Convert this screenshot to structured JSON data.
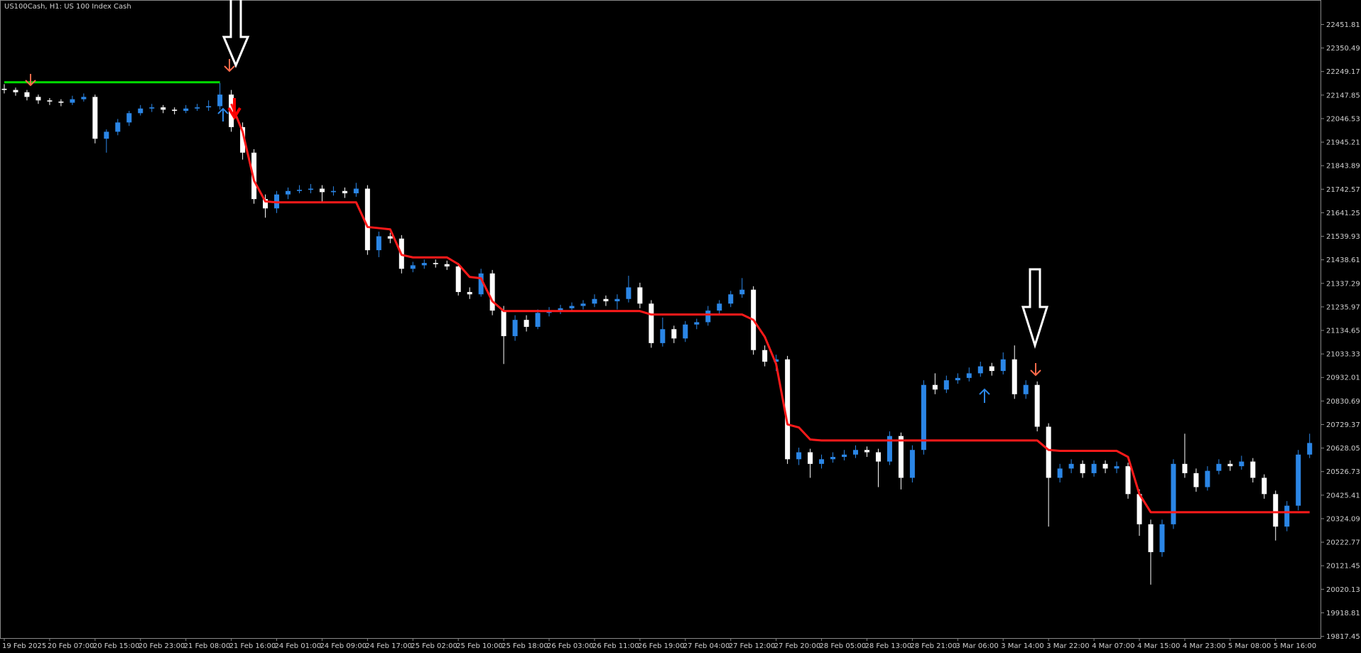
{
  "chart_data": {
    "type": "candlestick",
    "title": "US100Cash, H1:  US 100 Index Cash",
    "ylim": [
      19810,
      22545
    ],
    "yticks": [
      22451.81,
      22350.49,
      22249.17,
      22147.85,
      22046.53,
      21945.21,
      21843.89,
      21742.57,
      21641.25,
      21539.93,
      21438.61,
      21337.29,
      21235.97,
      21134.65,
      21033.33,
      20932.01,
      20830.69,
      20729.37,
      20628.05,
      20526.73,
      20425.41,
      20324.09,
      20222.77,
      20121.45,
      20020.13,
      19918.81,
      19817.45
    ],
    "x_labels": [
      "19 Feb 2025",
      "20 Feb 07:00",
      "20 Feb 15:00",
      "20 Feb 23:00",
      "21 Feb 08:00",
      "21 Feb 16:00",
      "24 Feb 01:00",
      "24 Feb 09:00",
      "24 Feb 17:00",
      "25 Feb 02:00",
      "25 Feb 10:00",
      "25 Feb 18:00",
      "26 Feb 03:00",
      "26 Feb 11:00",
      "26 Feb 19:00",
      "27 Feb 04:00",
      "27 Feb 12:00",
      "27 Feb 20:00",
      "28 Feb 05:00",
      "28 Feb 13:00",
      "28 Feb 21:00",
      "3 Mar 06:00",
      "3 Mar 14:00",
      "3 Mar 22:00",
      "4 Mar 07:00",
      "4 Mar 15:00",
      "4 Mar 23:00",
      "5 Mar 08:00",
      "5 Mar 16:00"
    ],
    "up_color": "#2b86e6",
    "down_color": "#ffffff",
    "candles": [
      [
        22175,
        22195,
        22155,
        22170
      ],
      [
        22170,
        22180,
        22145,
        22160
      ],
      [
        22160,
        22170,
        22125,
        22140
      ],
      [
        22140,
        22150,
        22110,
        22125
      ],
      [
        22125,
        22135,
        22105,
        22120
      ],
      [
        22120,
        22130,
        22100,
        22115
      ],
      [
        22115,
        22145,
        22105,
        22130
      ],
      [
        22130,
        22155,
        22120,
        22140
      ],
      [
        22140,
        22150,
        21940,
        21960
      ],
      [
        21960,
        22000,
        21900,
        21990
      ],
      [
        21990,
        22045,
        21975,
        22030
      ],
      [
        22030,
        22080,
        22015,
        22070
      ],
      [
        22070,
        22105,
        22060,
        22090
      ],
      [
        22090,
        22110,
        22075,
        22095
      ],
      [
        22095,
        22105,
        22070,
        22085
      ],
      [
        22085,
        22095,
        22065,
        22080
      ],
      [
        22080,
        22105,
        22070,
        22090
      ],
      [
        22090,
        22110,
        22080,
        22095
      ],
      [
        22095,
        22125,
        22080,
        22100
      ],
      [
        22100,
        22200,
        22085,
        22150
      ],
      [
        22150,
        22170,
        21990,
        22010
      ],
      [
        22010,
        22030,
        21870,
        21900
      ],
      [
        21900,
        21915,
        21680,
        21700
      ],
      [
        21700,
        21720,
        21620,
        21660
      ],
      [
        21660,
        21735,
        21640,
        21720
      ],
      [
        21720,
        21750,
        21700,
        21735
      ],
      [
        21735,
        21760,
        21725,
        21740
      ],
      [
        21740,
        21765,
        21725,
        21745
      ],
      [
        21745,
        21760,
        21690,
        21730
      ],
      [
        21730,
        21755,
        21715,
        21735
      ],
      [
        21735,
        21750,
        21705,
        21725
      ],
      [
        21725,
        21770,
        21710,
        21745
      ],
      [
        21745,
        21760,
        21460,
        21480
      ],
      [
        21480,
        21560,
        21450,
        21540
      ],
      [
        21540,
        21555,
        21510,
        21530
      ],
      [
        21530,
        21545,
        21380,
        21400
      ],
      [
        21400,
        21430,
        21385,
        21415
      ],
      [
        21415,
        21440,
        21400,
        21425
      ],
      [
        21425,
        21440,
        21405,
        21420
      ],
      [
        21420,
        21435,
        21395,
        21410
      ],
      [
        21410,
        21425,
        21285,
        21300
      ],
      [
        21300,
        21320,
        21270,
        21290
      ],
      [
        21290,
        21400,
        21280,
        21380
      ],
      [
        21380,
        21395,
        21200,
        21220
      ],
      [
        21220,
        21240,
        20990,
        21110
      ],
      [
        21110,
        21200,
        21090,
        21180
      ],
      [
        21180,
        21200,
        21130,
        21150
      ],
      [
        21150,
        21225,
        21140,
        21210
      ],
      [
        21210,
        21235,
        21195,
        21220
      ],
      [
        21220,
        21245,
        21205,
        21230
      ],
      [
        21230,
        21255,
        21215,
        21240
      ],
      [
        21240,
        21265,
        21225,
        21250
      ],
      [
        21250,
        21290,
        21235,
        21270
      ],
      [
        21270,
        21285,
        21240,
        21260
      ],
      [
        21260,
        21290,
        21225,
        21270
      ],
      [
        21270,
        21370,
        21255,
        21320
      ],
      [
        21320,
        21340,
        21230,
        21250
      ],
      [
        21250,
        21265,
        21060,
        21080
      ],
      [
        21080,
        21190,
        21065,
        21140
      ],
      [
        21140,
        21155,
        21080,
        21100
      ],
      [
        21100,
        21175,
        21085,
        21160
      ],
      [
        21160,
        21185,
        21140,
        21170
      ],
      [
        21170,
        21240,
        21155,
        21220
      ],
      [
        21220,
        21265,
        21205,
        21250
      ],
      [
        21250,
        21305,
        21235,
        21290
      ],
      [
        21290,
        21360,
        21275,
        21310
      ],
      [
        21310,
        21325,
        21030,
        21050
      ],
      [
        21050,
        21070,
        20980,
        21000
      ],
      [
        21000,
        21030,
        20960,
        21010
      ],
      [
        21010,
        21025,
        20560,
        20580
      ],
      [
        20580,
        20630,
        20555,
        20610
      ],
      [
        20610,
        20625,
        20500,
        20560
      ],
      [
        20560,
        20600,
        20540,
        20580
      ],
      [
        20580,
        20610,
        20565,
        20590
      ],
      [
        20590,
        20620,
        20575,
        20600
      ],
      [
        20600,
        20640,
        20585,
        20620
      ],
      [
        20620,
        20635,
        20590,
        20610
      ],
      [
        20610,
        20625,
        20460,
        20570
      ],
      [
        20570,
        20700,
        20555,
        20680
      ],
      [
        20680,
        20695,
        20450,
        20500
      ],
      [
        20500,
        20640,
        20480,
        20620
      ],
      [
        20620,
        20920,
        20600,
        20900
      ],
      [
        20900,
        20950,
        20860,
        20880
      ],
      [
        20880,
        20940,
        20865,
        20920
      ],
      [
        20920,
        20950,
        20905,
        20930
      ],
      [
        20930,
        20975,
        20915,
        20950
      ],
      [
        20950,
        21000,
        20935,
        20980
      ],
      [
        20980,
        20995,
        20940,
        20960
      ],
      [
        20960,
        21040,
        20945,
        21010
      ],
      [
        21010,
        21070,
        20840,
        20860
      ],
      [
        20860,
        20920,
        20840,
        20900
      ],
      [
        20900,
        20915,
        20700,
        20720
      ],
      [
        20720,
        20735,
        20290,
        20500
      ],
      [
        20500,
        20560,
        20480,
        20540
      ],
      [
        20540,
        20580,
        20520,
        20560
      ],
      [
        20560,
        20575,
        20500,
        20520
      ],
      [
        20520,
        20575,
        20505,
        20560
      ],
      [
        20560,
        20575,
        20520,
        20540
      ],
      [
        20540,
        20570,
        20520,
        20550
      ],
      [
        20550,
        20565,
        20410,
        20430
      ],
      [
        20430,
        20450,
        20250,
        20300
      ],
      [
        20300,
        20320,
        20040,
        20180
      ],
      [
        20180,
        20320,
        20160,
        20300
      ],
      [
        20300,
        20580,
        20280,
        20560
      ],
      [
        20560,
        20690,
        20500,
        20520
      ],
      [
        20520,
        20540,
        20440,
        20460
      ],
      [
        20460,
        20550,
        20445,
        20530
      ],
      [
        20530,
        20580,
        20515,
        20560
      ],
      [
        20560,
        20575,
        20530,
        20550
      ],
      [
        20550,
        20595,
        20535,
        20570
      ],
      [
        20570,
        20585,
        20480,
        20500
      ],
      [
        20500,
        20515,
        20410,
        20430
      ],
      [
        20430,
        20445,
        20230,
        20290
      ],
      [
        20290,
        20400,
        20270,
        20380
      ],
      [
        20380,
        20620,
        20360,
        20600
      ],
      [
        20600,
        20690,
        20585,
        20650
      ]
    ],
    "lines": [
      {
        "color": "#00dd00",
        "values": [
          22203,
          22203,
          22203,
          22203,
          22203,
          22203,
          22203,
          22203,
          22203,
          22203,
          22203,
          22203,
          22203,
          22203,
          22203,
          22203,
          22203,
          22203,
          22203,
          22203,
          null,
          null,
          null,
          null,
          null,
          null,
          null,
          null,
          null,
          null,
          null,
          null,
          null,
          null,
          null,
          null,
          null,
          null,
          null,
          null,
          null,
          null,
          null,
          null,
          null,
          null,
          null,
          null,
          null,
          null,
          null,
          null,
          null,
          null,
          null,
          null,
          null,
          null,
          null,
          null,
          null,
          null,
          null,
          null,
          null,
          null,
          null,
          null,
          null,
          null,
          null,
          null,
          null,
          null,
          null,
          null,
          null,
          null,
          null,
          null,
          null,
          null,
          null,
          null,
          null,
          null,
          null,
          null,
          null,
          null,
          null,
          null,
          null,
          null,
          null,
          null,
          null,
          null,
          null,
          null,
          null,
          null,
          null,
          null,
          null,
          null,
          null,
          null,
          null,
          null,
          null,
          null,
          null,
          null,
          null,
          null
        ]
      },
      {
        "color": "#ff1a1a",
        "values": [
          null,
          null,
          null,
          null,
          null,
          null,
          null,
          null,
          null,
          null,
          null,
          null,
          null,
          null,
          null,
          null,
          null,
          null,
          null,
          null,
          22110,
          21990,
          21780,
          21690,
          21686,
          21686,
          21686,
          21686,
          21686,
          21686,
          21686,
          21686,
          21580,
          21575,
          21570,
          21460,
          21449,
          21449,
          21449,
          21449,
          21420,
          21365,
          21359,
          21260,
          21218,
          21218,
          21218,
          21218,
          21218,
          21218,
          21218,
          21218,
          21218,
          21218,
          21218,
          21218,
          21218,
          21203,
          21203,
          21203,
          21203,
          21203,
          21203,
          21203,
          21203,
          21203,
          21180,
          21107,
          20990,
          20730,
          20717,
          20665,
          20661,
          20661,
          20661,
          20661,
          20661,
          20661,
          20661,
          20661,
          20661,
          20661,
          20661,
          20661,
          20661,
          20661,
          20661,
          20661,
          20661,
          20661,
          20661,
          20661,
          20620,
          20616,
          20616,
          20616,
          20616,
          20616,
          20616,
          20590,
          20430,
          20352,
          20352,
          20352,
          20352,
          20352,
          20352,
          20352,
          20352,
          20352,
          20352,
          20352,
          20352,
          20352,
          20352,
          20352
        ]
      }
    ]
  }
}
